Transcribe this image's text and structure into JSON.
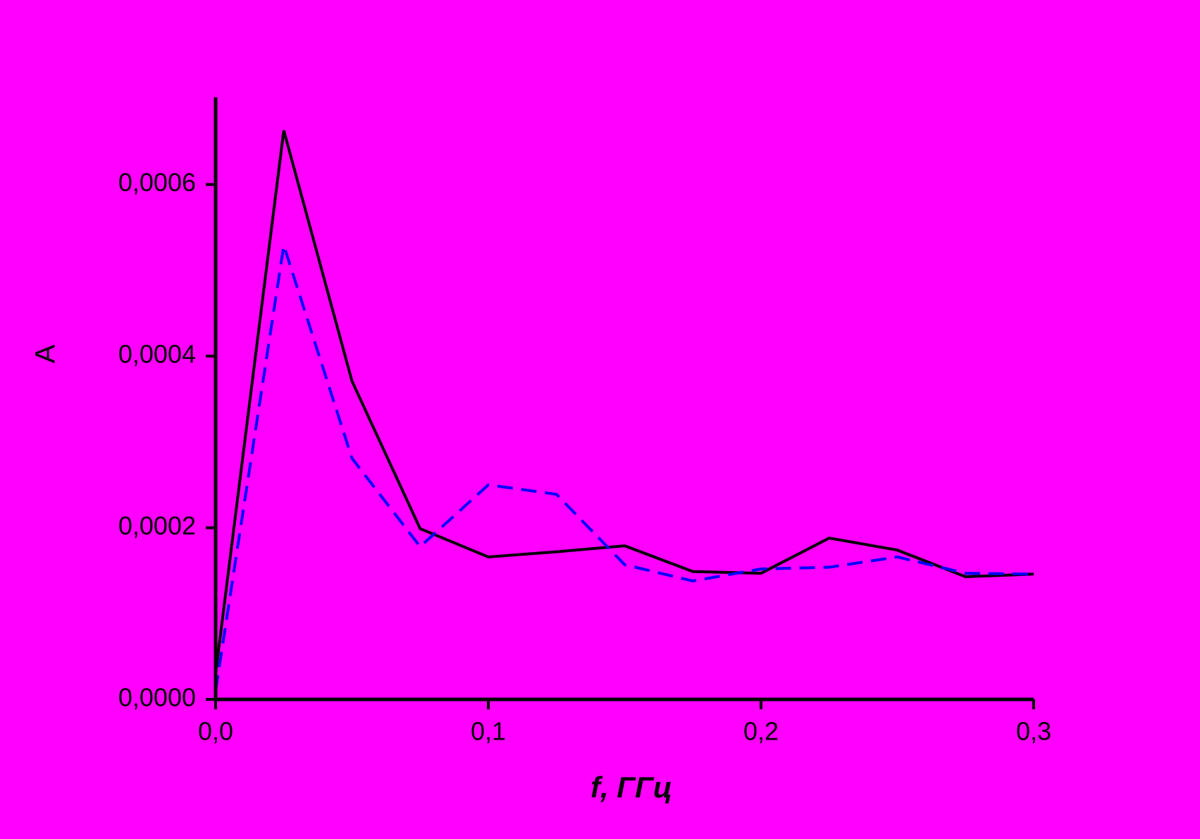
{
  "chart_data": {
    "type": "line",
    "x_label": "f, ГГц",
    "y_label": "A",
    "x": [
      0,
      0.025,
      0.05,
      0.075,
      0.1,
      0.125,
      0.15,
      0.175,
      0.2,
      0.225,
      0.25,
      0.275,
      0.3
    ],
    "series": [
      {
        "color": "#000000",
        "dash": "solid",
        "values": [
          3e-05,
          0.000663,
          0.000371,
          0.000199,
          0.000166,
          0.000172,
          0.000179,
          0.000149,
          0.000147,
          0.000188,
          0.000174,
          0.000143,
          0.000146
        ]
      },
      {
        "color": "#0000ff",
        "dash": "dashed",
        "values": [
          1e-05,
          0.000529,
          0.000281,
          0.000178,
          0.00025,
          0.000239,
          0.000157,
          0.000138,
          0.000152,
          0.000154,
          0.000166,
          0.000147,
          0.000146
        ]
      }
    ],
    "xlim": [
      0,
      0.3
    ],
    "ylim": [
      0,
      0.0007
    ],
    "xticks": [
      {
        "value": 0,
        "label": "0,0"
      },
      {
        "value": 0.1,
        "label": "0,1"
      },
      {
        "value": 0.2,
        "label": "0,2"
      },
      {
        "value": 0.3,
        "label": "0,3"
      }
    ],
    "yticks": [
      {
        "value": 0,
        "label": "0,0000"
      },
      {
        "value": 0.0002,
        "label": "0,0002"
      },
      {
        "value": 0.0004,
        "label": "0,0004"
      },
      {
        "value": 0.0006,
        "label": "0,0006"
      }
    ],
    "background": "#ff00ff",
    "grid": false
  }
}
